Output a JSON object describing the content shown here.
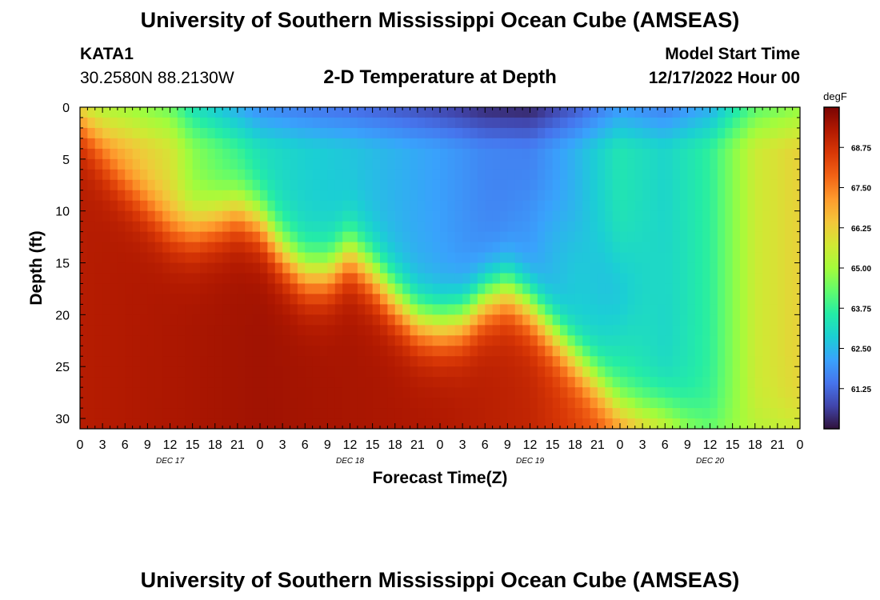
{
  "header": {
    "title": "University of Southern Mississippi Ocean Cube (AMSEAS)",
    "station": "KATA1",
    "coordinates": "30.2580N  88.2130W",
    "subtitle": "2-D Temperature at Depth",
    "model_start_label": "Model Start Time",
    "model_start_value": "12/17/2022 Hour 00"
  },
  "footer": {
    "title": "University of Southern Mississippi Ocean Cube (AMSEAS)"
  },
  "colors": {
    "scale": [
      "#30123b",
      "#4145ab",
      "#4675ed",
      "#39a2fc",
      "#1bcfd4",
      "#24eca6",
      "#61fc6c",
      "#a4fc3b",
      "#d1e834",
      "#f3c63a",
      "#fe9b2d",
      "#f36315",
      "#d93806",
      "#b11901",
      "#7a0403"
    ]
  },
  "chart_data": {
    "type": "heatmap",
    "title": "2-D Temperature at Depth",
    "xlabel": "Forecast Time(Z)",
    "ylabel": "Depth (ft)",
    "x_tick_labels": [
      "0",
      "3",
      "6",
      "9",
      "12",
      "15",
      "18",
      "21",
      "0",
      "3",
      "6",
      "9",
      "12",
      "15",
      "18",
      "21",
      "0",
      "3",
      "6",
      "9",
      "12",
      "15",
      "18",
      "21",
      "0",
      "3",
      "6",
      "9",
      "12",
      "15",
      "18",
      "21",
      "0"
    ],
    "day_labels": [
      {
        "label": "DEC 17",
        "hour": 12
      },
      {
        "label": "DEC 18",
        "hour": 36
      },
      {
        "label": "DEC 19",
        "hour": 60
      },
      {
        "label": "DEC 20",
        "hour": 84
      }
    ],
    "xlim_hours": [
      0,
      96
    ],
    "ylim_ft": [
      0,
      31
    ],
    "y_ticks": [
      0,
      5,
      10,
      15,
      20,
      25,
      30
    ],
    "colorbar": {
      "unit": "degF",
      "min": 60.0,
      "max": 70.0,
      "ticks": [
        61.25,
        62.5,
        63.75,
        65.0,
        66.25,
        67.5,
        68.75
      ],
      "tick_labels": [
        "61.25",
        "62.50",
        "63.75",
        "65.00",
        "66.25",
        "67.50",
        "68.75"
      ]
    },
    "surface_temp_degF": {
      "hours": [
        0,
        6,
        12,
        15,
        18,
        24,
        30,
        36,
        42,
        48,
        54,
        60,
        66,
        72,
        78,
        84,
        90,
        96
      ],
      "values": [
        65.2,
        65.0,
        64.4,
        63.3,
        62.8,
        61.8,
        61.5,
        61.3,
        61.0,
        60.7,
        60.3,
        60.2,
        61.0,
        62.0,
        61.6,
        62.3,
        64.2,
        64.8
      ]
    },
    "mixed_layer_depth_ft": {
      "hours": [
        0,
        3,
        6,
        9,
        12,
        15,
        18,
        21,
        24,
        27,
        30,
        33,
        36,
        39,
        42,
        45,
        48,
        51,
        54,
        57,
        60,
        63,
        66,
        69,
        72,
        75,
        78,
        81,
        84,
        87,
        90,
        93,
        96
      ],
      "values": [
        2,
        5,
        7.5,
        9.5,
        11.5,
        11.8,
        11,
        10,
        11,
        14,
        16,
        16,
        14,
        16,
        18.5,
        20.5,
        21,
        20.5,
        18.5,
        17.5,
        19,
        21.5,
        24,
        26.5,
        29,
        29.5,
        29.5,
        30.5,
        31,
        31,
        31,
        31,
        31
      ]
    },
    "deep_temp_degF": {
      "hours": [
        0,
        24,
        48,
        60,
        72,
        84,
        96
      ],
      "values": [
        69.2,
        69.5,
        69.3,
        69.0,
        68.0,
        65.0,
        65.0
      ]
    },
    "subsurface_minimum": {
      "hours": [
        60,
        66,
        72,
        78
      ],
      "depth_ft": [
        12,
        16,
        18,
        16
      ],
      "temp_degF": [
        62.6,
        62.8,
        62.6,
        63.2
      ]
    }
  }
}
